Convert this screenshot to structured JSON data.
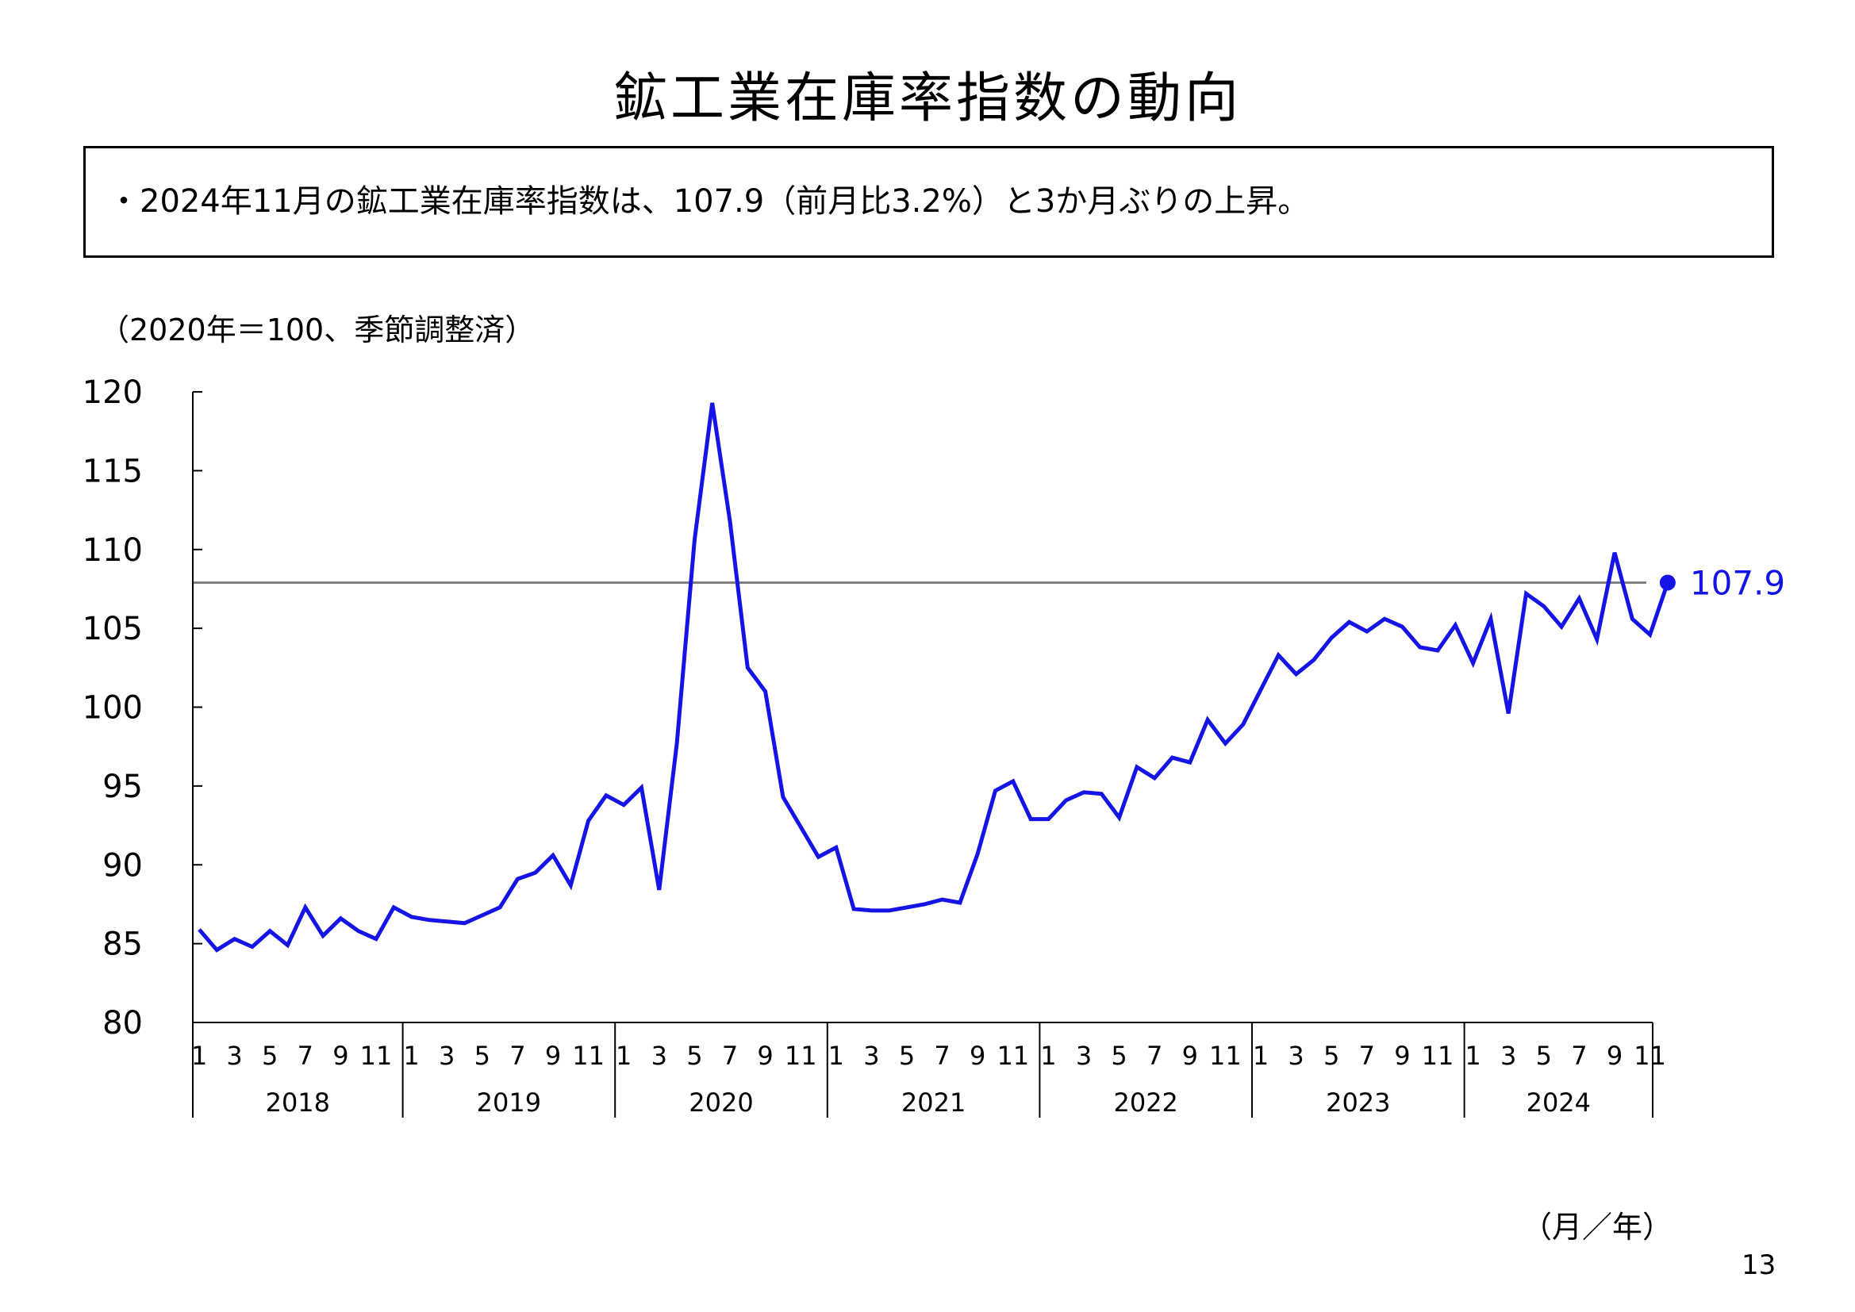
{
  "title": "鉱工業在庫率指数の動向",
  "summary": "・2024年11月の鉱工業在庫率指数は、107.9（前月比3.2%）と3か月ぶりの上昇。",
  "unit_note": "（2020年＝100、季節調整済）",
  "axis_unit": "（月／年）",
  "page_number": "13",
  "colors": {
    "series": "#1414e6",
    "reference_line": "#808080",
    "axis": "#000000"
  },
  "chart_data": {
    "type": "line",
    "ylim": [
      80,
      120
    ],
    "yticks": [
      "80",
      "85",
      "90",
      "95",
      "100",
      "105",
      "110",
      "115",
      "120"
    ],
    "month_tick_labels": [
      "1",
      "3",
      "5",
      "7",
      "9",
      "11"
    ],
    "years": [
      "2018",
      "2019",
      "2020",
      "2021",
      "2022",
      "2023",
      "2024"
    ],
    "x_start": "2018-01",
    "x_end": "2024-11",
    "grid": false,
    "reference_line": 107.9,
    "last_value_label": "107.9",
    "series": [
      {
        "values": [
          85.9,
          84.6,
          85.3,
          84.8,
          85.8,
          84.9,
          87.3,
          85.5,
          86.6,
          85.8,
          85.3,
          87.3,
          86.7,
          86.5,
          86.4,
          86.3,
          86.8,
          87.3,
          89.1,
          89.5,
          90.6,
          88.7,
          92.8,
          94.4,
          93.8,
          94.9,
          88.4,
          97.7,
          110.6,
          119.3,
          111.8,
          102.5,
          101.0,
          94.3,
          92.4,
          90.5,
          91.1,
          87.2,
          87.1,
          87.1,
          87.3,
          87.5,
          87.8,
          87.6,
          90.7,
          94.7,
          95.3,
          92.9,
          92.9,
          94.1,
          94.6,
          94.5,
          93.0,
          96.2,
          95.5,
          96.8,
          96.5,
          99.2,
          97.7,
          98.9,
          101.1,
          103.3,
          102.1,
          103.0,
          104.4,
          105.4,
          104.8,
          105.6,
          105.1,
          103.8,
          103.6,
          105.2,
          102.8,
          105.6,
          99.6,
          107.2,
          106.4,
          105.1,
          106.9,
          104.3,
          109.8,
          105.6,
          104.6,
          107.9
        ]
      }
    ]
  }
}
